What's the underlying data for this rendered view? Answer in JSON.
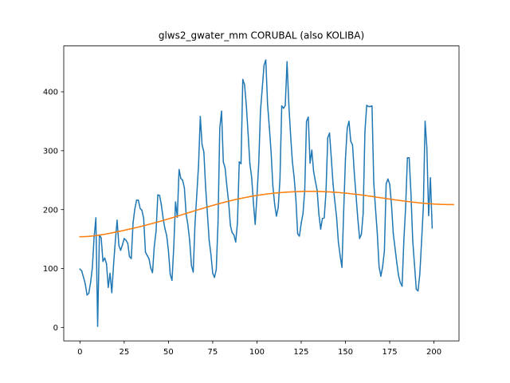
{
  "chart_data": {
    "type": "line",
    "title": "glws2_gwater_mm CORUBAL (also KOLIBA)",
    "xlabel": "",
    "ylabel": "",
    "xlim": [
      -9.15,
      214.15
    ],
    "ylim": [
      -22.8,
      477.8
    ],
    "x_ticks": [
      0,
      25,
      50,
      75,
      100,
      125,
      150,
      175,
      200
    ],
    "y_ticks": [
      0,
      100,
      200,
      300,
      400
    ],
    "grid": false,
    "legend": "none",
    "series": [
      {
        "color": "#1f77b4",
        "values": [
          99,
          96,
          85,
          74,
          55,
          58,
          76,
          101,
          153,
          186,
          2,
          157,
          152,
          112,
          118,
          108,
          68,
          92,
          59,
          107,
          147,
          182,
          139,
          131,
          140,
          151,
          148,
          143,
          120,
          117,
          177,
          201,
          216,
          216,
          202,
          199,
          185,
          128,
          122,
          117,
          101,
          93,
          138,
          163,
          225,
          224,
          208,
          185,
          168,
          156,
          130,
          90,
          80,
          136,
          213,
          187,
          268,
          253,
          250,
          237,
          192,
          174,
          147,
          105,
          94,
          176,
          225,
          275,
          358,
          310,
          298,
          238,
          194,
          148,
          124,
          92,
          85,
          98,
          177,
          338,
          367,
          281,
          271,
          240,
          213,
          173,
          161,
          157,
          145,
          178,
          281,
          278,
          421,
          412,
          377,
          329,
          278,
          255,
          212,
          175,
          223,
          278,
          368,
          406,
          445,
          454,
          379,
          340,
          297,
          240,
          209,
          189,
          203,
          251,
          376,
          372,
          377,
          451,
          379,
          327,
          282,
          255,
          218,
          159,
          155,
          177,
          193,
          233,
          350,
          357,
          279,
          301,
          265,
          248,
          233,
          192,
          167,
          185,
          186,
          229,
          322,
          330,
          288,
          243,
          214,
          187,
          145,
          122,
          102,
          197,
          286,
          338,
          350,
          316,
          310,
          262,
          223,
          184,
          151,
          158,
          193,
          332,
          377,
          375,
          375,
          376,
          245,
          201,
          159,
          103,
          87,
          103,
          130,
          244,
          252,
          243,
          209,
          160,
          135,
          110,
          88,
          76,
          70,
          148,
          204,
          288,
          288,
          228,
          148,
          107,
          65,
          62,
          90,
          146,
          204,
          350,
          305,
          190,
          254,
          169
        ]
      },
      {
        "color": "#ff7f0e",
        "values": [
          154.0,
          154.0,
          154.1,
          154.2,
          154.4,
          154.6,
          154.9,
          155.2,
          155.5,
          155.9,
          156.3,
          156.7,
          157.2,
          157.7,
          158.2,
          158.8,
          159.3,
          159.9,
          160.5,
          161.1,
          161.7,
          162.3,
          163.0,
          163.6,
          164.2,
          164.9,
          165.6,
          166.2,
          166.9,
          167.6,
          168.3,
          169.0,
          169.7,
          170.4,
          171.2,
          171.9,
          172.7,
          173.4,
          174.2,
          175.0,
          175.8,
          176.6,
          177.4,
          178.2,
          179.1,
          179.9,
          180.8,
          181.6,
          182.5,
          183.4,
          184.3,
          185.2,
          186.1,
          187.0,
          188.0,
          188.9,
          189.8,
          190.7,
          191.7,
          192.6,
          193.5,
          194.5,
          195.4,
          196.3,
          197.2,
          198.2,
          199.1,
          200.0,
          200.9,
          201.8,
          202.7,
          203.6,
          204.5,
          205.4,
          206.2,
          207.1,
          207.9,
          208.8,
          209.6,
          210.4,
          211.2,
          212.0,
          212.8,
          213.5,
          214.3,
          215.0,
          215.8,
          216.5,
          217.2,
          217.8,
          218.5,
          219.1,
          219.7,
          220.3,
          220.9,
          221.5,
          222.1,
          222.6,
          223.1,
          223.6,
          224.1,
          224.6,
          225.0,
          225.4,
          225.8,
          226.2,
          226.6,
          227.0,
          227.3,
          227.6,
          228.0,
          228.3,
          228.6,
          228.8,
          229.1,
          229.3,
          229.5,
          229.7,
          229.9,
          230.1,
          230.2,
          230.4,
          230.5,
          230.6,
          230.7,
          230.8,
          230.9,
          230.9,
          231.0,
          231.0,
          231.0,
          231.0,
          231.0,
          230.9,
          230.9,
          230.8,
          230.7,
          230.6,
          230.5,
          230.4,
          230.2,
          230.1,
          229.9,
          229.7,
          229.5,
          229.3,
          229.1,
          228.8,
          228.6,
          228.3,
          228.0,
          227.7,
          227.4,
          227.1,
          226.7,
          226.4,
          226.0,
          225.6,
          225.3,
          224.9,
          224.5,
          224.1,
          223.6,
          223.2,
          222.8,
          222.4,
          221.9,
          221.5,
          221.0,
          220.6,
          220.1,
          219.7,
          219.3,
          218.8,
          218.4,
          217.9,
          217.5,
          217.1,
          216.6,
          216.2,
          215.8,
          215.4,
          215.0,
          214.6,
          214.2,
          213.8,
          213.4,
          213.1,
          212.7,
          212.4,
          212.1,
          211.7,
          211.4,
          211.1,
          210.9,
          210.6,
          210.3,
          210.1,
          209.9,
          209.7,
          209.5,
          209.3,
          209.2,
          209.0,
          208.9,
          208.8,
          208.7,
          208.6,
          208.6,
          208.5,
          208.5,
          208.5
        ]
      }
    ]
  }
}
